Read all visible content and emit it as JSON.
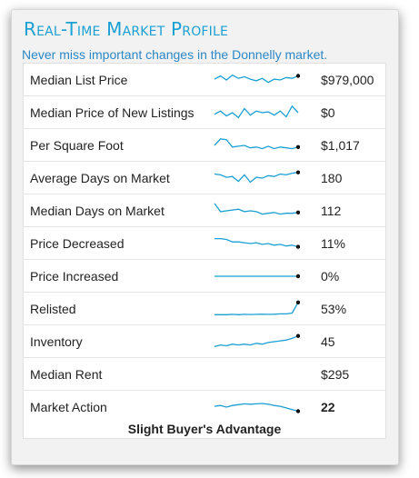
{
  "header": {
    "title": "Real-Time Market Profile",
    "subtitle": "Never miss important changes in the Donnelly market."
  },
  "rows": [
    {
      "label": "Median List Price",
      "value": "$979,000",
      "spark": [
        0.55,
        0.75,
        0.5,
        0.8,
        0.6,
        0.7,
        0.55,
        0.45,
        0.6,
        0.35,
        0.55,
        0.5,
        0.65,
        0.6,
        0.75
      ],
      "flat": false,
      "end_dot": true
    },
    {
      "label": "Median Price of New Listings",
      "value": "$0",
      "spark": [
        0.4,
        0.6,
        0.3,
        0.5,
        0.2,
        0.75,
        0.35,
        0.6,
        0.5,
        0.55,
        0.35,
        0.6,
        0.25,
        0.9,
        0.5
      ],
      "flat": false,
      "end_dot": false
    },
    {
      "label": "Per Square Foot",
      "value": "$1,017",
      "spark": [
        0.5,
        0.9,
        0.85,
        0.4,
        0.45,
        0.5,
        0.35,
        0.4,
        0.3,
        0.45,
        0.3,
        0.4,
        0.35,
        0.3,
        0.4
      ],
      "flat": false,
      "end_dot": true
    },
    {
      "label": "Average Days on Market",
      "value": "180",
      "spark": [
        0.75,
        0.7,
        0.55,
        0.6,
        0.3,
        0.7,
        0.25,
        0.55,
        0.5,
        0.65,
        0.6,
        0.75,
        0.7,
        0.8,
        0.85
      ],
      "flat": false,
      "end_dot": true
    },
    {
      "label": "Median Days on Market",
      "value": "112",
      "spark": [
        0.95,
        0.45,
        0.5,
        0.55,
        0.6,
        0.45,
        0.5,
        0.45,
        0.3,
        0.35,
        0.4,
        0.3,
        0.35,
        0.35,
        0.4
      ],
      "flat": false,
      "end_dot": true
    },
    {
      "label": "Price Decreased",
      "value": "11%",
      "spark": [
        0.8,
        0.8,
        0.75,
        0.6,
        0.6,
        0.55,
        0.5,
        0.55,
        0.45,
        0.5,
        0.4,
        0.45,
        0.35,
        0.4,
        0.3
      ],
      "flat": false,
      "end_dot": true
    },
    {
      "label": "Price Increased",
      "value": "0%",
      "spark": [
        0.5,
        0.5,
        0.5,
        0.5,
        0.5,
        0.5,
        0.5,
        0.5,
        0.5,
        0.5,
        0.5,
        0.5,
        0.5,
        0.5,
        0.5
      ],
      "flat": true,
      "end_dot": true
    },
    {
      "label": "Relisted",
      "value": "53%",
      "spark": [
        0.15,
        0.15,
        0.15,
        0.17,
        0.15,
        0.17,
        0.16,
        0.17,
        0.18,
        0.17,
        0.18,
        0.2,
        0.2,
        0.25,
        0.9
      ],
      "flat": false,
      "end_dot": true
    },
    {
      "label": "Inventory",
      "value": "45",
      "spark": [
        0.2,
        0.3,
        0.25,
        0.35,
        0.3,
        0.35,
        0.3,
        0.4,
        0.35,
        0.45,
        0.5,
        0.55,
        0.6,
        0.7,
        0.85
      ],
      "flat": false,
      "end_dot": true
    },
    {
      "label": "Median Rent",
      "value": "$295",
      "spark": [],
      "flat": false,
      "end_dot": false
    }
  ],
  "market_action": {
    "label": "Market Action",
    "value": "22",
    "spark": [
      0.55,
      0.6,
      0.5,
      0.6,
      0.65,
      0.7,
      0.68,
      0.7,
      0.72,
      0.68,
      0.6,
      0.55,
      0.45,
      0.35,
      0.25
    ],
    "advantage": "Slight Buyer's Advantage"
  },
  "colors": {
    "title": "#1aa0d3",
    "subtitle": "#2b87c5",
    "spark_line": "#1aa0d3",
    "end_dot": "#111111"
  }
}
